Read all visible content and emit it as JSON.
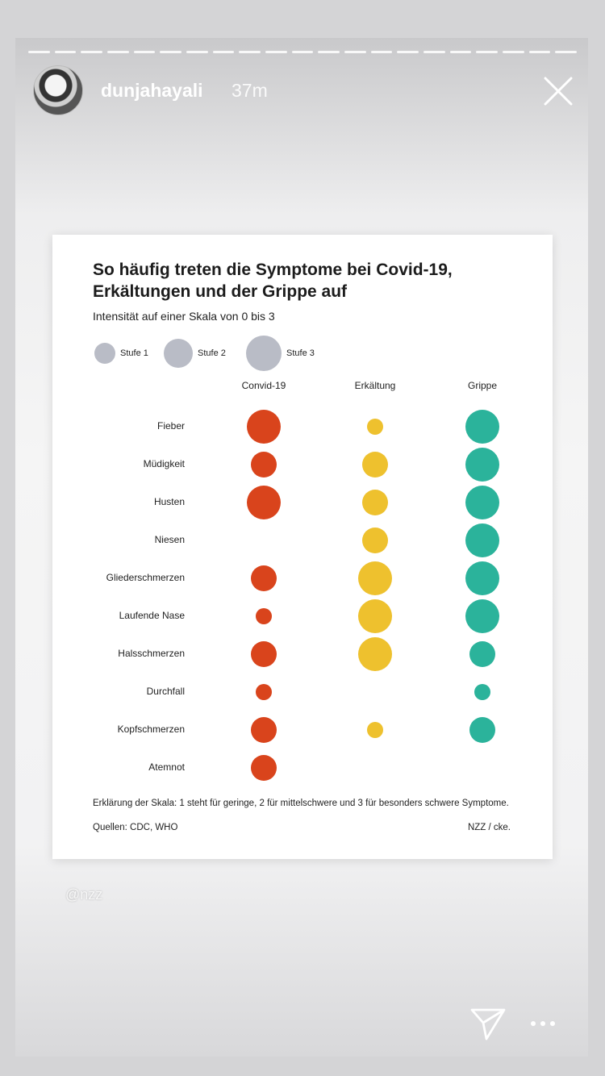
{
  "story": {
    "progress_segments": 21,
    "username": "dunjahayali",
    "time": "37m",
    "watermark": "@nzz"
  },
  "chart": {
    "title": "So häufig treten die Symptome bei Covid-19, Erkältungen und der Grippe auf",
    "subtitle": "Intensität auf einer Skala von 0 bis 3",
    "legend": [
      "Stufe 1",
      "Stufe 2",
      "Stufe 3"
    ],
    "footnote": "Erklärung der Skala: 1 steht für geringe, 2 für mittelschwere und 3 für besonders schwere Symptome.",
    "sources": "Quellen: CDC, WHO",
    "credit": "NZZ / cke."
  },
  "chart_data": {
    "type": "bubble-matrix",
    "title": "So häufig treten die Symptome bei Covid-19, Erkältungen und der Grippe auf",
    "subtitle": "Intensität auf einer Skala von 0 bis 3",
    "columns": [
      "Convid-19",
      "Erkältung",
      "Grippe"
    ],
    "rows": [
      "Fieber",
      "Müdigkeit",
      "Husten",
      "Niesen",
      "Gliederschmerzen",
      "Laufende Nase",
      "Halsschmerzen",
      "Durchfall",
      "Kopfschmerzen",
      "Atemnot"
    ],
    "values": [
      [
        3,
        1,
        3
      ],
      [
        2,
        2,
        3
      ],
      [
        3,
        2,
        3
      ],
      [
        0,
        2,
        3
      ],
      [
        2,
        3,
        3
      ],
      [
        1,
        3,
        3
      ],
      [
        2,
        3,
        2
      ],
      [
        1,
        0,
        1
      ],
      [
        2,
        1,
        2
      ],
      [
        2,
        0,
        0
      ]
    ],
    "colors": [
      "#d9441c",
      "#eec12e",
      "#2bb39b"
    ],
    "legend_color": "#b9bcc6",
    "scale": [
      0,
      3
    ]
  }
}
